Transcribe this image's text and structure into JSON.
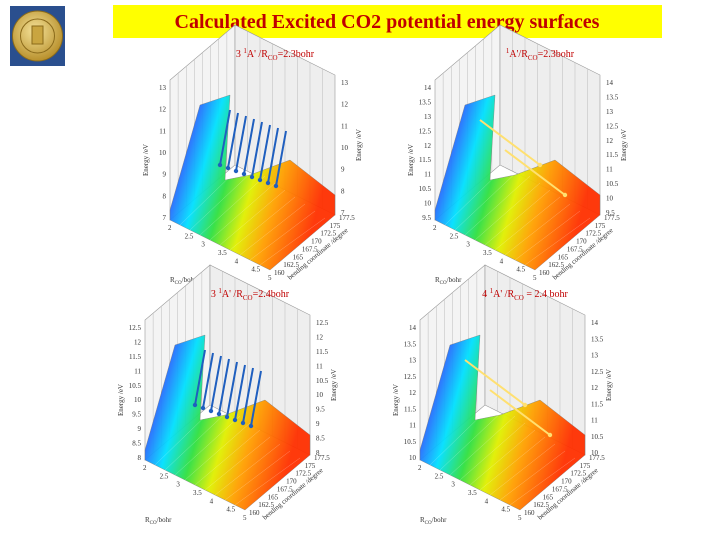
{
  "header": {
    "title": "Calculated Excited CO2 potential energy surfaces"
  },
  "panels": [
    {
      "label": {
        "prefix": "3 ",
        "sup": "1",
        "mid": "A' /R",
        "sub": "CO",
        "suffix": "=2.3bohr"
      },
      "r_axis": {
        "main": "R",
        "sub": "CO",
        "unit": "/bohr"
      },
      "z_axis": "Energy /eV",
      "a_axis": "bending coordinate /degree",
      "zticks": [
        7,
        8,
        9,
        10,
        11,
        12,
        13
      ],
      "rticks": [
        2,
        2.5,
        3,
        3.5,
        4,
        4.5,
        5
      ],
      "aticks": [
        160,
        162.5,
        165,
        167.5,
        170,
        172.5,
        175,
        177.5
      ],
      "arrows": "blue"
    },
    {
      "label": {
        "prefix": "",
        "sup": "1",
        "mid": "A'/R",
        "sub": "CO",
        "suffix": "=2.3bohr"
      },
      "r_axis": {
        "main": "R",
        "sub": "CO",
        "unit": "/bohr"
      },
      "z_axis": "Energy /eV",
      "a_axis": "bending coordinate /degree",
      "zticks": [
        9.5,
        10,
        10.5,
        11,
        11.5,
        12,
        12.5,
        13,
        13.5,
        14
      ],
      "rticks": [
        2,
        2.5,
        3,
        3.5,
        4,
        4.5,
        5
      ],
      "aticks": [
        160,
        162.5,
        165,
        167.5,
        170,
        172.5,
        175,
        177.5
      ],
      "arrows": "yellow"
    },
    {
      "label": {
        "prefix": "3 ",
        "sup": "1",
        "mid": "A' /R",
        "sub": "CO",
        "suffix": "=2.4bohr"
      },
      "r_axis": {
        "main": "R",
        "sub": "CO",
        "unit": "/bohr"
      },
      "z_axis": "Energy /eV",
      "a_axis": "bending coordinate /degree",
      "zticks": [
        8,
        8.5,
        9,
        9.5,
        10,
        10.5,
        11,
        11.5,
        12,
        12.5
      ],
      "rticks": [
        2,
        2.5,
        3,
        3.5,
        4,
        4.5,
        5
      ],
      "aticks": [
        160,
        162.5,
        165,
        167.5,
        170,
        172.5,
        175,
        177.5
      ],
      "arrows": "blue"
    },
    {
      "label": {
        "prefix": "4 ",
        "sup": "1",
        "mid": "A' /R",
        "sub": "CO",
        "suffix": " = 2.4 bohr"
      },
      "r_axis": {
        "main": "R",
        "sub": "CO",
        "unit": "/bohr"
      },
      "z_axis": "Energy /eV",
      "a_axis": "bending coordinate /degree",
      "zticks": [
        10,
        10.5,
        11,
        11.5,
        12,
        12.5,
        13,
        13.5,
        14
      ],
      "rticks": [
        2,
        2.5,
        3,
        3.5,
        4,
        4.5,
        5
      ],
      "aticks": [
        160,
        162.5,
        165,
        167.5,
        170,
        172.5,
        175,
        177.5
      ],
      "arrows": "yellow"
    }
  ]
}
